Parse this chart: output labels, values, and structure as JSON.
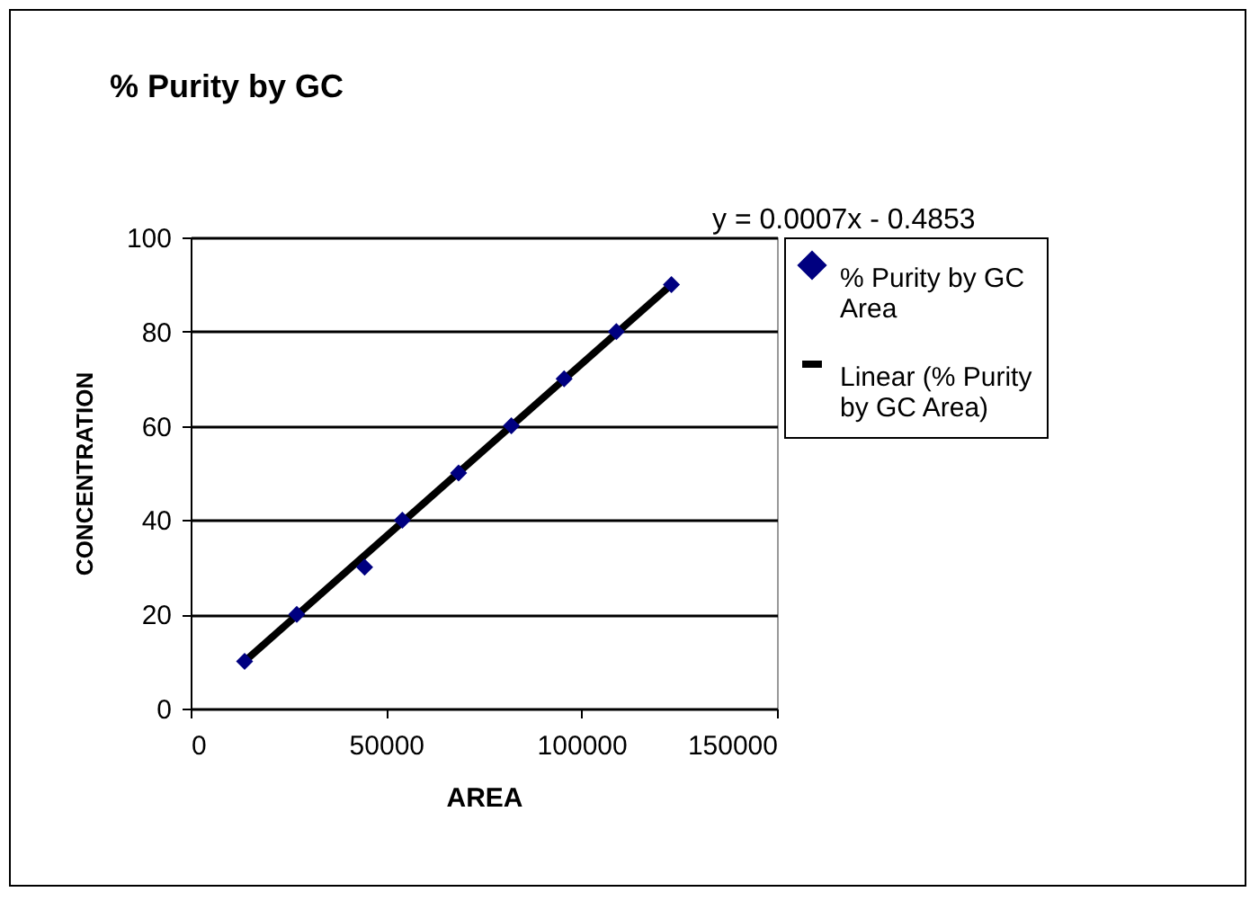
{
  "chart_data": {
    "type": "scatter",
    "title": "% Purity by GC",
    "xlabel": "AREA",
    "ylabel": "CONCENTRATION",
    "annotations": [
      "y = 0.0007x - 0.4853"
    ],
    "series": [
      {
        "name": "% Purity by GC Area",
        "marker": "diamond",
        "color": "#000080",
        "x": [
          13800,
          27150,
          44500,
          54150,
          68550,
          82050,
          95550,
          108900,
          123000
        ],
        "values": [
          10,
          20,
          30,
          40,
          50,
          60,
          70,
          80,
          90
        ]
      },
      {
        "name": "Linear (% Purity by GC Area)",
        "type": "line",
        "color": "#000000",
        "x": [
          13800,
          123000
        ],
        "values": [
          10,
          90
        ]
      }
    ],
    "xlim": [
      0,
      150000
    ],
    "xticks": [
      0,
      50000,
      100000,
      150000
    ],
    "ylim": [
      0,
      100
    ],
    "yticks": [
      0,
      20,
      40,
      60,
      80,
      100
    ],
    "grid": "y",
    "legend": "right",
    "line_style": "solid"
  }
}
